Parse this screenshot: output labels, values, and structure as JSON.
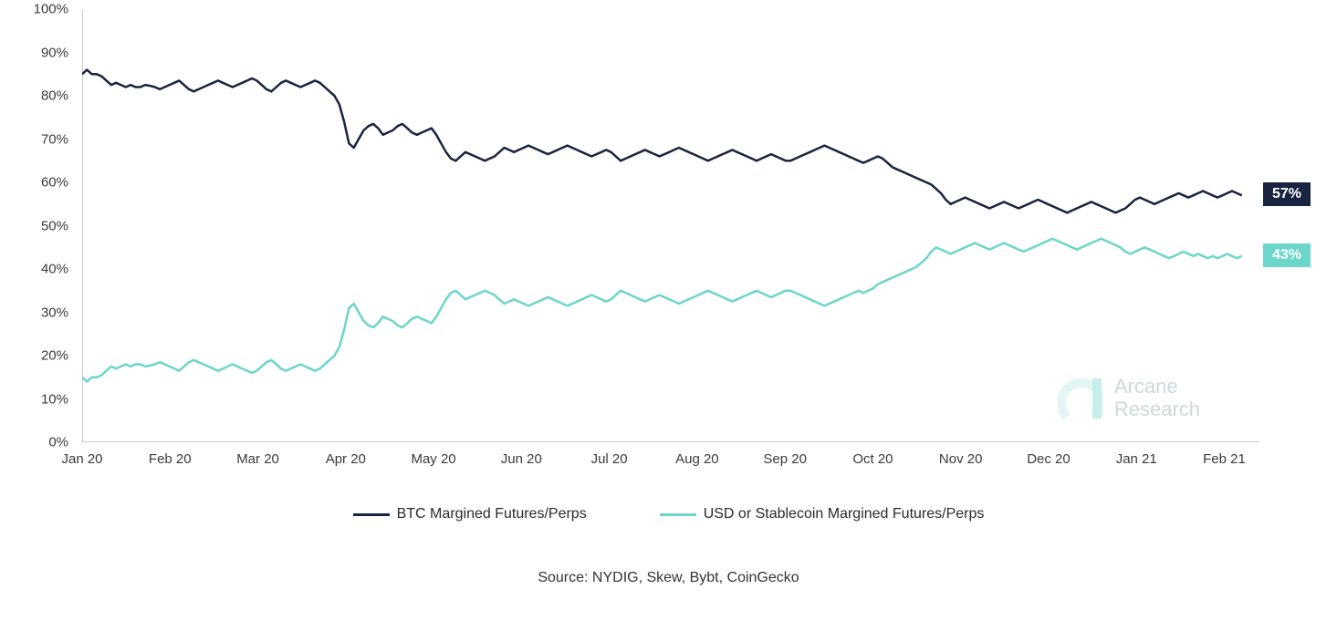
{
  "chart": {
    "type": "line",
    "background_color": "#ffffff",
    "axis_line_color": "#c9c9c9",
    "tick_label_color": "#3a3a3a",
    "tick_fontsize": 15,
    "ylim": [
      0,
      100
    ],
    "ytick_step": 10,
    "yticks": [
      "0%",
      "10%",
      "20%",
      "30%",
      "40%",
      "50%",
      "60%",
      "70%",
      "80%",
      "90%",
      "100%"
    ],
    "xticks": [
      "Jan 20",
      "Feb 20",
      "Mar 20",
      "Apr 20",
      "May 20",
      "Jun 20",
      "Jul 20",
      "Aug 20",
      "Sep 20",
      "Oct 20",
      "Nov 20",
      "Dec 20",
      "Jan 21",
      "Feb 21"
    ],
    "x_count": 14,
    "series": [
      {
        "name": "BTC Margined Futures/Perps",
        "color": "#1a2340",
        "line_width": 2.5,
        "end_value": 57,
        "end_label": "57%",
        "end_label_bg": "#1a2340",
        "end_label_color": "#ffffff",
        "data": [
          85,
          86,
          85,
          85,
          84.5,
          83.5,
          82.5,
          83,
          82.5,
          82,
          82.5,
          82,
          82,
          82.5,
          82.3,
          82,
          81.5,
          82,
          82.5,
          83,
          83.5,
          82.5,
          81.5,
          81,
          81.5,
          82,
          82.5,
          83,
          83.5,
          83,
          82.5,
          82,
          82.5,
          83,
          83.5,
          84,
          83.5,
          82.5,
          81.5,
          81,
          82,
          83,
          83.5,
          83,
          82.5,
          82,
          82.5,
          83,
          83.5,
          83,
          82,
          81,
          80,
          78,
          74,
          69,
          68,
          70,
          72,
          73,
          73.5,
          72.5,
          71,
          71.5,
          72,
          73,
          73.5,
          72.5,
          71.5,
          71,
          71.5,
          72,
          72.5,
          71,
          69,
          67,
          65.5,
          65,
          66,
          67,
          66.5,
          66,
          65.5,
          65,
          65.5,
          66,
          67,
          68,
          67.5,
          67,
          67.5,
          68,
          68.5,
          68,
          67.5,
          67,
          66.5,
          67,
          67.5,
          68,
          68.5,
          68,
          67.5,
          67,
          66.5,
          66,
          66.5,
          67,
          67.5,
          67,
          66,
          65,
          65.5,
          66,
          66.5,
          67,
          67.5,
          67,
          66.5,
          66,
          66.5,
          67,
          67.5,
          68,
          67.5,
          67,
          66.5,
          66,
          65.5,
          65,
          65.5,
          66,
          66.5,
          67,
          67.5,
          67,
          66.5,
          66,
          65.5,
          65,
          65.5,
          66,
          66.5,
          66,
          65.5,
          65,
          65,
          65.5,
          66,
          66.5,
          67,
          67.5,
          68,
          68.5,
          68,
          67.5,
          67,
          66.5,
          66,
          65.5,
          65,
          64.5,
          65,
          65.5,
          66,
          65.5,
          64.5,
          63.5,
          63,
          62.5,
          62,
          61.5,
          61,
          60.5,
          60,
          59.5,
          58.5,
          57.5,
          56,
          55,
          55.5,
          56,
          56.5,
          56,
          55.5,
          55,
          54.5,
          54,
          54.5,
          55,
          55.5,
          55,
          54.5,
          54,
          54.5,
          55,
          55.5,
          56,
          55.5,
          55,
          54.5,
          54,
          53.5,
          53,
          53.5,
          54,
          54.5,
          55,
          55.5,
          55,
          54.5,
          54,
          53.5,
          53,
          53.5,
          54,
          55,
          56,
          56.5,
          56,
          55.5,
          55,
          55.5,
          56,
          56.5,
          57,
          57.5,
          57,
          56.5,
          57,
          57.5,
          58,
          57.5,
          57,
          56.5,
          57,
          57.5,
          58,
          57.5,
          57
        ]
      },
      {
        "name": "USD or Stablecoin Margined Futures/Perps",
        "color": "#6bd6c9",
        "line_width": 2.5,
        "end_value": 43,
        "end_label": "43%",
        "end_label_bg": "#6bd6c9",
        "end_label_color": "#ffffff",
        "data": [
          15,
          14,
          15,
          15,
          15.5,
          16.5,
          17.5,
          17,
          17.5,
          18,
          17.5,
          18,
          18,
          17.5,
          17.7,
          18,
          18.5,
          18,
          17.5,
          17,
          16.5,
          17.5,
          18.5,
          19,
          18.5,
          18,
          17.5,
          17,
          16.5,
          17,
          17.5,
          18,
          17.5,
          17,
          16.5,
          16,
          16.5,
          17.5,
          18.5,
          19,
          18,
          17,
          16.5,
          17,
          17.5,
          18,
          17.5,
          17,
          16.5,
          17,
          18,
          19,
          20,
          22,
          26,
          31,
          32,
          30,
          28,
          27,
          26.5,
          27.5,
          29,
          28.5,
          28,
          27,
          26.5,
          27.5,
          28.5,
          29,
          28.5,
          28,
          27.5,
          29,
          31,
          33,
          34.5,
          35,
          34,
          33,
          33.5,
          34,
          34.5,
          35,
          34.5,
          34,
          33,
          32,
          32.5,
          33,
          32.5,
          32,
          31.5,
          32,
          32.5,
          33,
          33.5,
          33,
          32.5,
          32,
          31.5,
          32,
          32.5,
          33,
          33.5,
          34,
          33.5,
          33,
          32.5,
          33,
          34,
          35,
          34.5,
          34,
          33.5,
          33,
          32.5,
          33,
          33.5,
          34,
          33.5,
          33,
          32.5,
          32,
          32.5,
          33,
          33.5,
          34,
          34.5,
          35,
          34.5,
          34,
          33.5,
          33,
          32.5,
          33,
          33.5,
          34,
          34.5,
          35,
          34.5,
          34,
          33.5,
          34,
          34.5,
          35,
          35,
          34.5,
          34,
          33.5,
          33,
          32.5,
          32,
          31.5,
          32,
          32.5,
          33,
          33.5,
          34,
          34.5,
          35,
          34.5,
          35,
          35.5,
          36.5,
          37,
          37.5,
          38,
          38.5,
          39,
          39.5,
          40,
          40.5,
          41.5,
          42.5,
          44,
          45,
          44.5,
          44,
          43.5,
          44,
          44.5,
          45,
          45.5,
          46,
          45.5,
          45,
          44.5,
          45,
          45.5,
          46,
          45.5,
          45,
          44.5,
          44,
          44.5,
          45,
          45.5,
          46,
          46.5,
          47,
          46.5,
          46,
          45.5,
          45,
          44.5,
          45,
          45.5,
          46,
          46.5,
          47,
          46.5,
          46,
          45.5,
          45,
          44,
          43.5,
          44,
          44.5,
          45,
          44.5,
          44,
          43.5,
          43,
          42.5,
          43,
          43.5,
          44,
          43.5,
          43,
          43.5,
          43,
          42.5,
          43,
          42.5,
          43,
          43.5,
          43,
          42.5,
          43
        ]
      }
    ],
    "legend": {
      "fontsize": 16,
      "text_color": "#2a2a2a",
      "line_width": 40
    },
    "source_text": "Source: NYDIG, Skew, Bybt, CoinGecko",
    "watermark": {
      "line1": "Arcane",
      "line2": "Research",
      "logo_dark": "#6bd6c9",
      "logo_light": "#b8e8e2",
      "text_color": "#7a9aa0"
    }
  }
}
